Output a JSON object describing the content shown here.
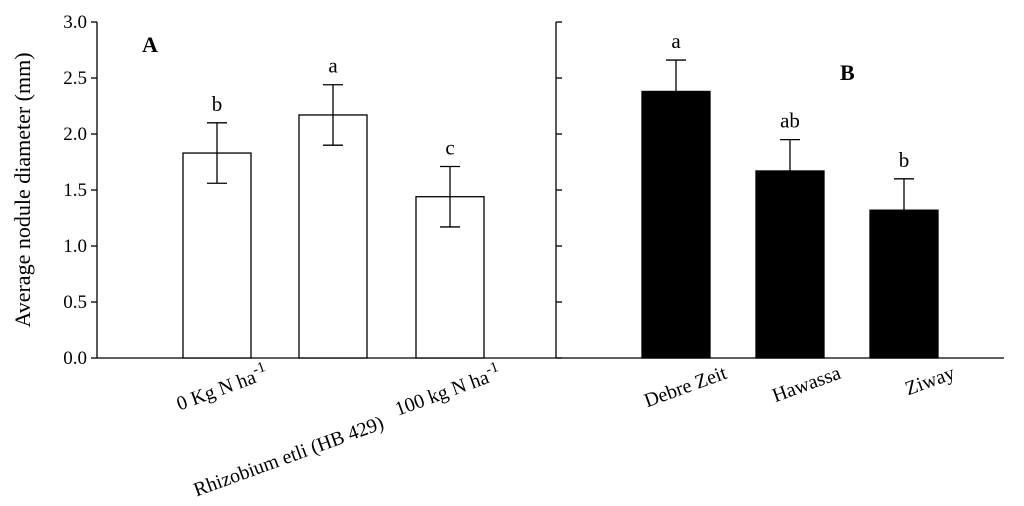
{
  "chart_data": {
    "type": "bar",
    "ylabel": "Average nodule diameter (mm)",
    "ylim": [
      0,
      3.0
    ],
    "yticks": [
      "0.0",
      "0.5",
      "1.0",
      "1.5",
      "2.0",
      "2.5",
      "3.0"
    ],
    "grid": false,
    "panels": [
      {
        "label": "A",
        "bar_color": "#ffffff",
        "categories": [
          "0 Kg N ha",
          "Rhizobium etli (HB 429)",
          "100 kg N ha"
        ],
        "category_superscripts": [
          "-1",
          "",
          "-1"
        ],
        "values": [
          1.83,
          2.17,
          1.44
        ],
        "errors": [
          0.27,
          0.27,
          0.27
        ],
        "significance": [
          "b",
          "a",
          "c"
        ]
      },
      {
        "label": "B",
        "bar_color": "#000000",
        "categories": [
          "Debre Zeit",
          "Hawassa",
          "Ziway"
        ],
        "category_superscripts": [
          "",
          "",
          ""
        ],
        "values": [
          2.38,
          1.67,
          1.32
        ],
        "errors": [
          0.28,
          0.28,
          0.28
        ],
        "significance": [
          "a",
          "ab",
          "b"
        ]
      }
    ]
  }
}
